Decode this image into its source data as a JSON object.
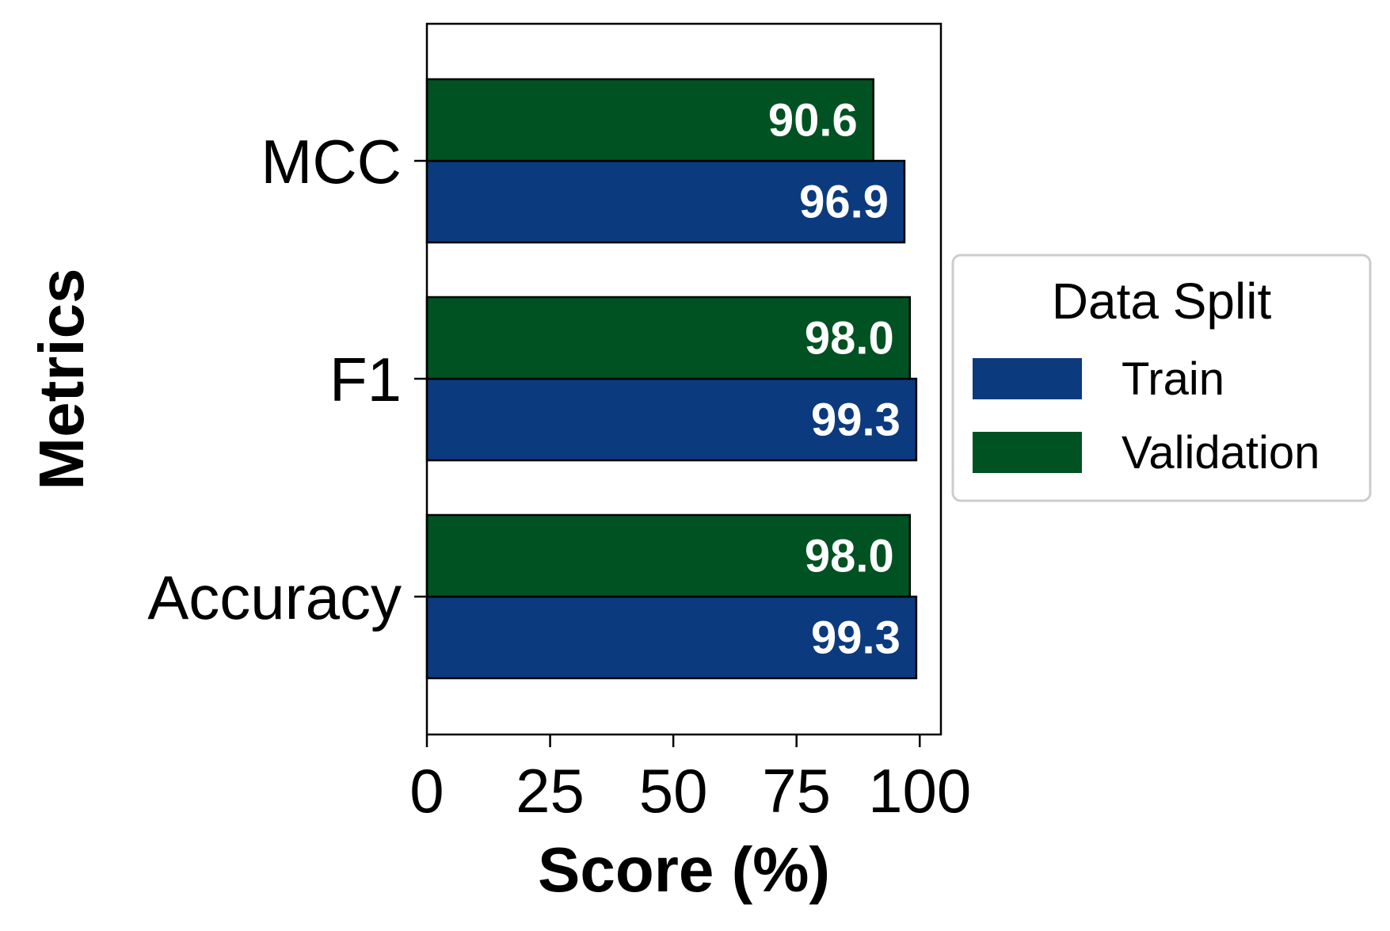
{
  "chart_data": {
    "type": "bar",
    "orientation": "horizontal",
    "categories": [
      "Accuracy",
      "F1",
      "MCC"
    ],
    "series": [
      {
        "name": "Train",
        "color": "#0b3a7e",
        "values": [
          99.3,
          99.3,
          96.9
        ],
        "labels": [
          "99.3",
          "99.3",
          "96.9"
        ]
      },
      {
        "name": "Validation",
        "color": "#005222",
        "values": [
          98.0,
          98.0,
          90.6
        ],
        "labels": [
          "98.0",
          "98.0",
          "90.6"
        ]
      }
    ],
    "xlabel": "Score (%)",
    "ylabel": "Metrics",
    "xlim": [
      0,
      104.3
    ],
    "xticks": [
      0,
      25,
      50,
      75,
      100
    ],
    "xtick_labels": [
      "0",
      "25",
      "50",
      "75",
      "100"
    ],
    "grid": false,
    "legend": {
      "title": "Data Split",
      "placement": "center-right outside"
    }
  }
}
